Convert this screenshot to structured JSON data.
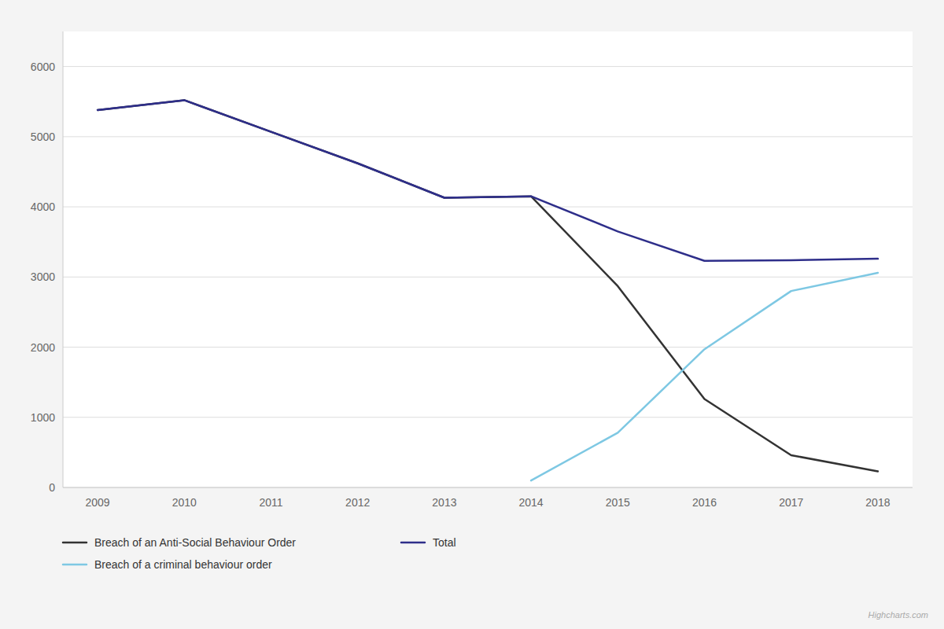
{
  "chart_data": {
    "type": "line",
    "x": [
      2009,
      2010,
      2011,
      2012,
      2013,
      2014,
      2015,
      2016,
      2017,
      2018
    ],
    "series": [
      {
        "name": "Breach of an Anti-Social Behaviour Order",
        "color": "#333333",
        "values": [
          5380,
          5520,
          5070,
          4620,
          4130,
          4150,
          2870,
          1260,
          460,
          230
        ]
      },
      {
        "name": "Total",
        "color": "#2e2e8a",
        "values": [
          5380,
          5520,
          5070,
          4620,
          4130,
          4150,
          3650,
          3230,
          3240,
          3260
        ]
      },
      {
        "name": "Breach of a criminal behaviour order",
        "color": "#7ec8e3",
        "values": [
          null,
          null,
          null,
          null,
          null,
          100,
          780,
          1970,
          2800,
          3060
        ]
      }
    ],
    "xlim": [
      2008.6,
      2018.4
    ],
    "xticks": [
      2009,
      2010,
      2011,
      2012,
      2013,
      2014,
      2015,
      2016,
      2017,
      2018
    ],
    "ylim": [
      0,
      6500
    ],
    "yticks": [
      0,
      1000,
      2000,
      3000,
      4000,
      5000,
      6000
    ],
    "grid": true,
    "legend": "bottom",
    "annotations": [
      "Highcharts.com"
    ]
  }
}
